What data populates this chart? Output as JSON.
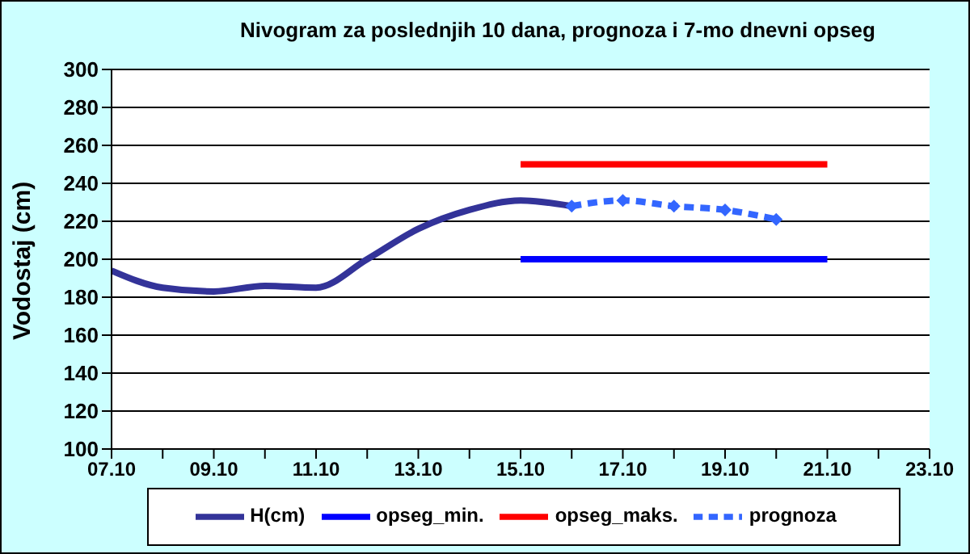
{
  "chart_data": {
    "type": "line",
    "title": "Nivogram za poslednjih 10 dana, prognoza i 7-mo dnevni opseg",
    "ylabel": "Vodostaj (cm)",
    "xlim": [
      "--10-07",
      "--10-23"
    ],
    "xticks": [
      {
        "value": "--10-07",
        "label": "07.10"
      },
      {
        "value": "--10-08",
        "label": null
      },
      {
        "value": "--10-09",
        "label": "09.10"
      },
      {
        "value": "--10-10",
        "label": null
      },
      {
        "value": "--10-11",
        "label": "11.10"
      },
      {
        "value": "--10-12",
        "label": null
      },
      {
        "value": "--10-13",
        "label": "13.10"
      },
      {
        "value": "--10-14",
        "label": null
      },
      {
        "value": "--10-15",
        "label": "15.10"
      },
      {
        "value": "--10-16",
        "label": null
      },
      {
        "value": "--10-17",
        "label": "17.10"
      },
      {
        "value": "--10-18",
        "label": null
      },
      {
        "value": "--10-19",
        "label": "19.10"
      },
      {
        "value": "--10-20",
        "label": null
      },
      {
        "value": "--10-21",
        "label": "21.10"
      },
      {
        "value": "--10-22",
        "label": null
      },
      {
        "value": "--10-23",
        "label": "23.10"
      }
    ],
    "ylim": [
      100,
      300
    ],
    "yticks": [
      100,
      120,
      140,
      160,
      180,
      200,
      220,
      240,
      260,
      280,
      300
    ],
    "grid": "y",
    "legend": "bottom",
    "series": [
      {
        "name": "H(cm)",
        "color": "#333399",
        "x": [
          "--10-07",
          "--10-08",
          "--10-09",
          "--10-10",
          "--10-11",
          "--10-12",
          "--10-13",
          "--10-14",
          "--10-15",
          "--10-16"
        ],
        "values": [
          194,
          185,
          183,
          186,
          185,
          200,
          216,
          226,
          231,
          228
        ],
        "marker": "none",
        "line_style": "solid"
      },
      {
        "name": "opseg_min.",
        "color": "#0000ff",
        "x": [
          "--10-15",
          "--10-21"
        ],
        "values": [
          200,
          200
        ],
        "marker": "none",
        "line_style": "solid"
      },
      {
        "name": "opseg_maks.",
        "color": "#ff0000",
        "x": [
          "--10-15",
          "--10-21"
        ],
        "values": [
          250,
          250
        ],
        "marker": "none",
        "line_style": "solid"
      },
      {
        "name": "prognoza",
        "color": "#3366ff",
        "x": [
          "--10-16",
          "--10-17",
          "--10-18",
          "--10-19",
          "--10-20"
        ],
        "values": [
          228,
          231,
          228,
          226,
          221
        ],
        "marker": "diamond",
        "line_style": "dashed"
      }
    ]
  }
}
